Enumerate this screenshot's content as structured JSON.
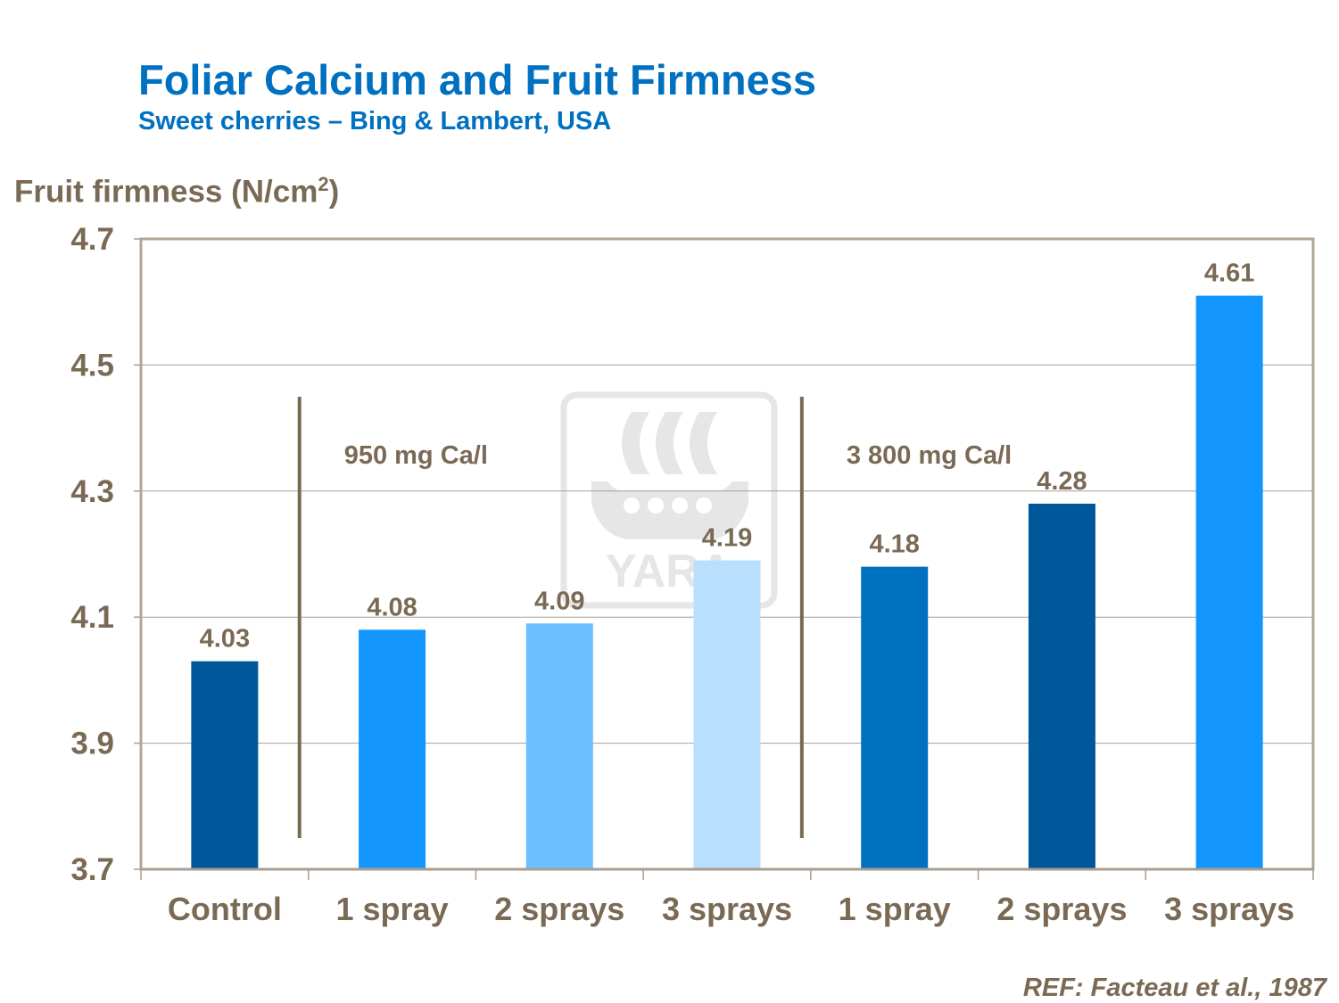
{
  "chart_data": {
    "type": "bar",
    "title": "Foliar Calcium and Fruit Firmness",
    "subtitle": "Sweet cherries – Bing & Lambert, USA",
    "ylabel": "Fruit firmness (N/cm",
    "ylabel_sup": "2",
    "ylabel_close": ")",
    "ylim": [
      3.7,
      4.7
    ],
    "yticks": [
      3.7,
      3.9,
      4.1,
      4.3,
      4.5,
      4.7
    ],
    "ytick_labels": [
      "3.7",
      "3.9",
      "4.1",
      "4.3",
      "4.5",
      "4.7"
    ],
    "grid": true,
    "categories": [
      "Control",
      "1 spray",
      "2 sprays",
      "3 sprays",
      "1 spray",
      "2 sprays",
      "3 sprays"
    ],
    "values": [
      4.03,
      4.08,
      4.09,
      4.19,
      4.18,
      4.28,
      4.61
    ],
    "value_labels": [
      "4.03",
      "4.08",
      "4.09",
      "4.19",
      "4.18",
      "4.28",
      "4.61"
    ],
    "colors": [
      "#00579A",
      "#1496FF",
      "#6BBFFF",
      "#B9DFFF",
      "#0070C0",
      "#00579A",
      "#1496FF"
    ],
    "groups": [
      {
        "label": "950 mg Ca/l",
        "categories": [
          1,
          2,
          3
        ]
      },
      {
        "label": "3 800 mg Ca/l",
        "categories": [
          4,
          5,
          6
        ]
      }
    ],
    "reference": "REF: Facteau et al., 1987",
    "watermark": "YARA"
  }
}
